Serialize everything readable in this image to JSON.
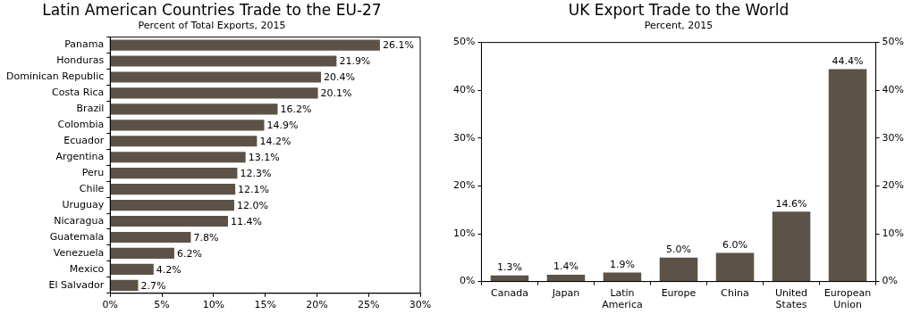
{
  "chart_data": [
    {
      "type": "bar",
      "orientation": "horizontal",
      "title": "Latin American Countries Trade to the EU-27",
      "subtitle": "Percent of Total Exports, 2015",
      "categories": [
        "Panama",
        "Honduras",
        "Dominican Republic",
        "Costa Rica",
        "Brazil",
        "Colombia",
        "Ecuador",
        "Argentina",
        "Peru",
        "Chile",
        "Uruguay",
        "Nicaragua",
        "Guatemala",
        "Venezuela",
        "Mexico",
        "El Salvador"
      ],
      "values": [
        26.1,
        21.9,
        20.4,
        20.1,
        16.2,
        14.9,
        14.2,
        13.1,
        12.3,
        12.1,
        12.0,
        11.4,
        7.8,
        6.2,
        4.2,
        2.7
      ],
      "value_labels": [
        "26.1%",
        "21.9%",
        "20.4%",
        "20.1%",
        "16.2%",
        "14.9%",
        "14.2%",
        "13.1%",
        "12.3%",
        "12.1%",
        "12.0%",
        "11.4%",
        "7.8%",
        "6.2%",
        "4.2%",
        "2.7%"
      ],
      "color": "#5d5247",
      "xlim": [
        0,
        30
      ],
      "xticks": [
        {
          "value": 0,
          "label": "0%"
        },
        {
          "value": 5,
          "label": "5%"
        },
        {
          "value": 10,
          "label": "10%"
        },
        {
          "value": 15,
          "label": "15%"
        },
        {
          "value": 20,
          "label": "20%"
        },
        {
          "value": 25,
          "label": "25%"
        },
        {
          "value": 30,
          "label": "30%"
        }
      ],
      "grid": false,
      "legend": false
    },
    {
      "type": "bar",
      "title": "UK Export Trade to the World",
      "subtitle": "Percent, 2015",
      "categories": [
        "Canada",
        "Japan",
        "Latin America",
        "Europe",
        "China",
        "United States",
        "European Union"
      ],
      "values": [
        1.3,
        1.4,
        1.9,
        5.0,
        6.0,
        14.6,
        44.4
      ],
      "value_labels": [
        "1.3%",
        "1.4%",
        "1.9%",
        "5.0%",
        "6.0%",
        "14.6%",
        "44.4%"
      ],
      "color": "#5d5247",
      "ylim": [
        0,
        50
      ],
      "yticks": [
        {
          "value": 0,
          "label": "0%"
        },
        {
          "value": 10,
          "label": "10%"
        },
        {
          "value": 20,
          "label": "20%"
        },
        {
          "value": 30,
          "label": "30%"
        },
        {
          "value": 40,
          "label": "40%"
        },
        {
          "value": 50,
          "label": "50%"
        }
      ],
      "y2lim": [
        0,
        50
      ],
      "y2ticks": [
        {
          "value": 0,
          "label": "0%"
        },
        {
          "value": 10,
          "label": "10%"
        },
        {
          "value": 20,
          "label": "20%"
        },
        {
          "value": 30,
          "label": "30%"
        },
        {
          "value": 40,
          "label": "40%"
        },
        {
          "value": 50,
          "label": "50%"
        }
      ],
      "grid": false,
      "legend": false
    }
  ]
}
